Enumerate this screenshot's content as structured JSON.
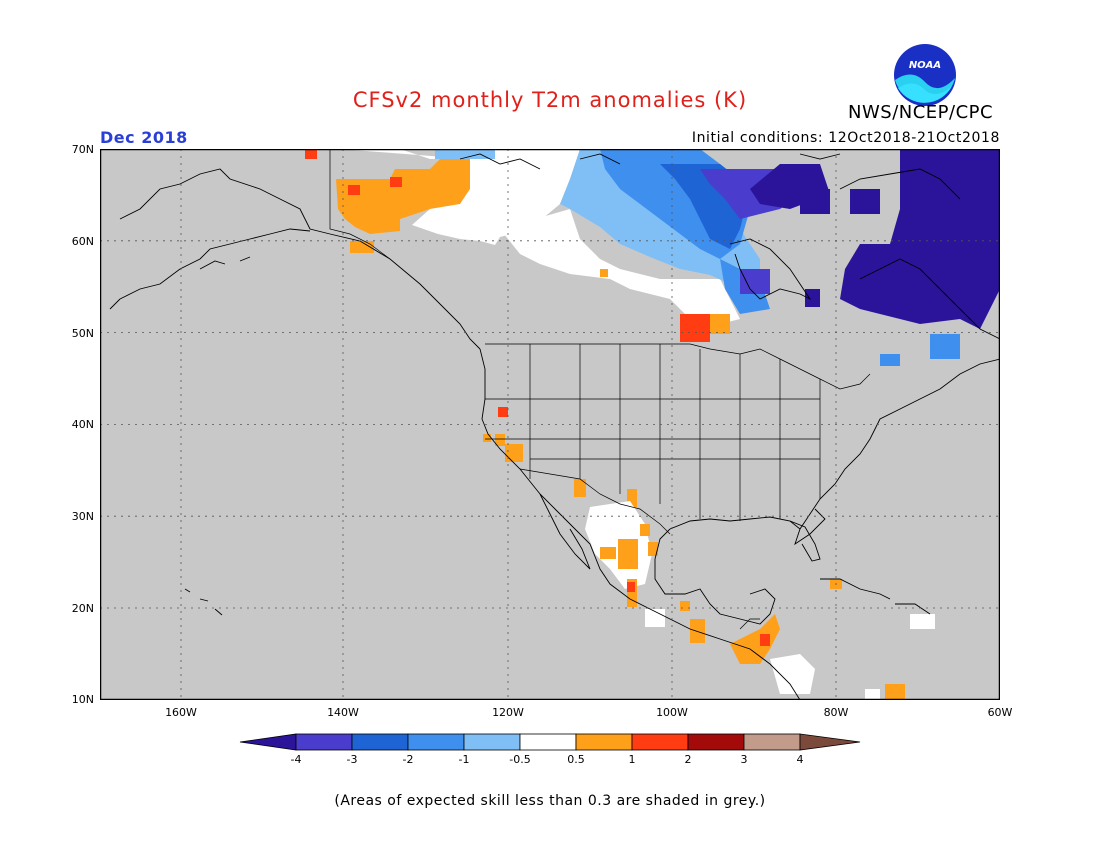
{
  "header": {
    "title": "CFSv2 monthly T2m anomalies (K)",
    "agency": "NWS/NCEP/CPC",
    "logo_text": "NOAA",
    "month": "Dec 2018",
    "initial_conditions": "Initial conditions: 12Oct2018-21Oct2018"
  },
  "map": {
    "lat_labels": [
      "70N",
      "60N",
      "50N",
      "40N",
      "30N",
      "20N",
      "10N"
    ],
    "lon_labels": [
      "160W",
      "140W",
      "120W",
      "100W",
      "80W",
      "60W"
    ],
    "background_color": "#c8c8c8",
    "land_outline_color": "#000000"
  },
  "colorbar": {
    "labels": [
      "-4",
      "-3",
      "-2",
      "-1",
      "-0.5",
      "0.5",
      "1",
      "2",
      "3",
      "4"
    ],
    "colors": [
      "#2b149a",
      "#4a3ccc",
      "#1f64d4",
      "#3f8fee",
      "#80bff6",
      "#ffffff",
      "#ffa01a",
      "#ff3c12",
      "#a30a0a",
      "#c29b8a",
      "#7c4a3a"
    ]
  },
  "footnote": "(Areas of expected skill less than 0.3 are shaded in grey.)"
}
